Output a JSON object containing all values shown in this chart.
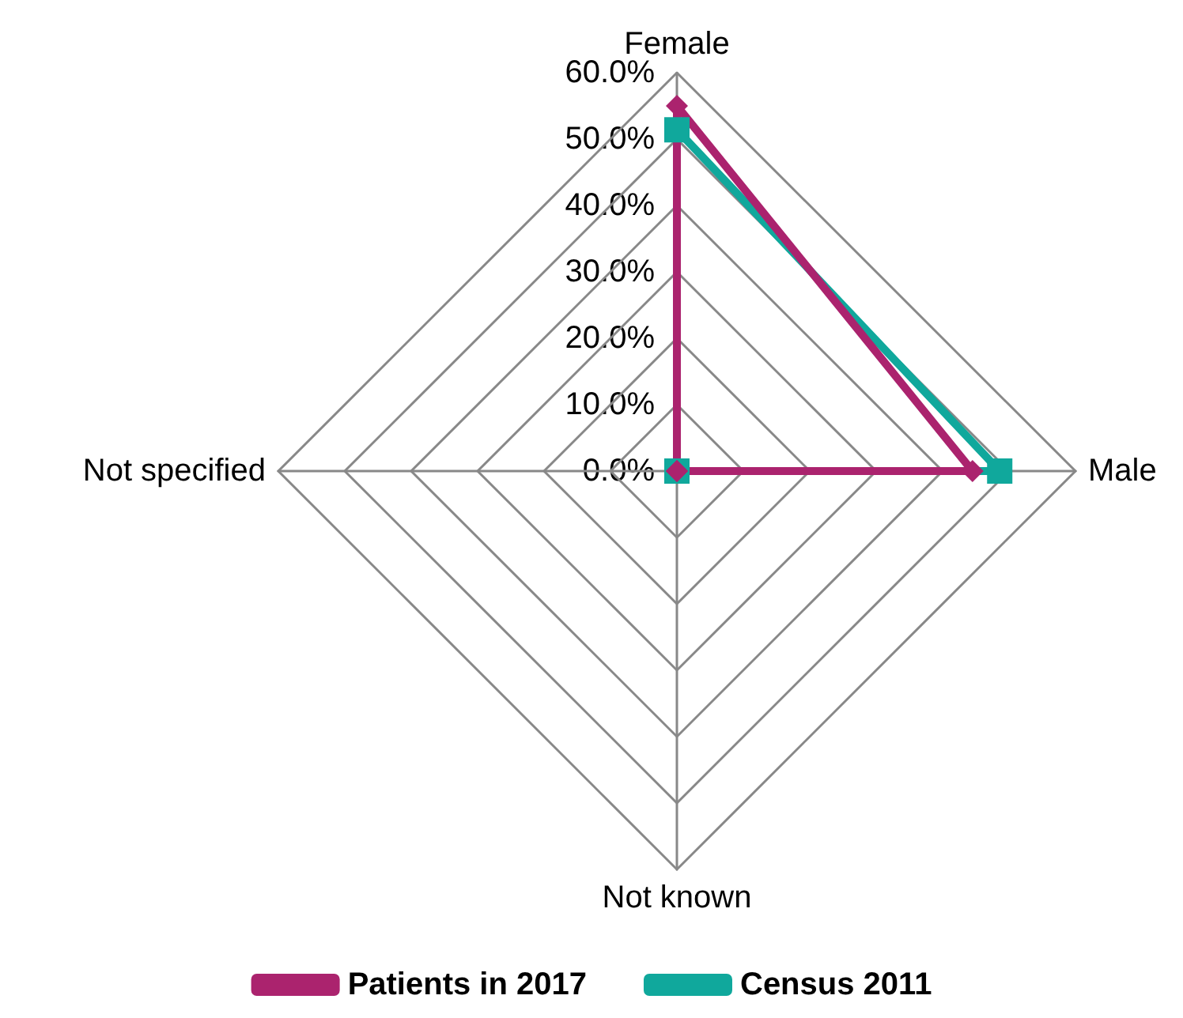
{
  "chart_data": {
    "type": "radar",
    "categories": [
      "Female",
      "Male",
      "Not known",
      "Not specified"
    ],
    "series": [
      {
        "name": "Patients in 2017",
        "color": "#ab236e",
        "marker": "diamond",
        "values": [
          55.0,
          44.5,
          0,
          0
        ]
      },
      {
        "name": "Census 2011",
        "color": "#10a89c",
        "marker": "square",
        "values": [
          51.4,
          48.6,
          0,
          0
        ]
      }
    ],
    "ylim": [
      0,
      60
    ],
    "yticks": [
      {
        "value": 0,
        "label": "0.0%"
      },
      {
        "value": 10,
        "label": "10.0%"
      },
      {
        "value": 20,
        "label": "20.0%"
      },
      {
        "value": 30,
        "label": "30.0%"
      },
      {
        "value": 40,
        "label": "40.0%"
      },
      {
        "value": 50,
        "label": "50.0%"
      },
      {
        "value": 60,
        "label": "60.0%"
      }
    ],
    "legend": "bottom"
  }
}
